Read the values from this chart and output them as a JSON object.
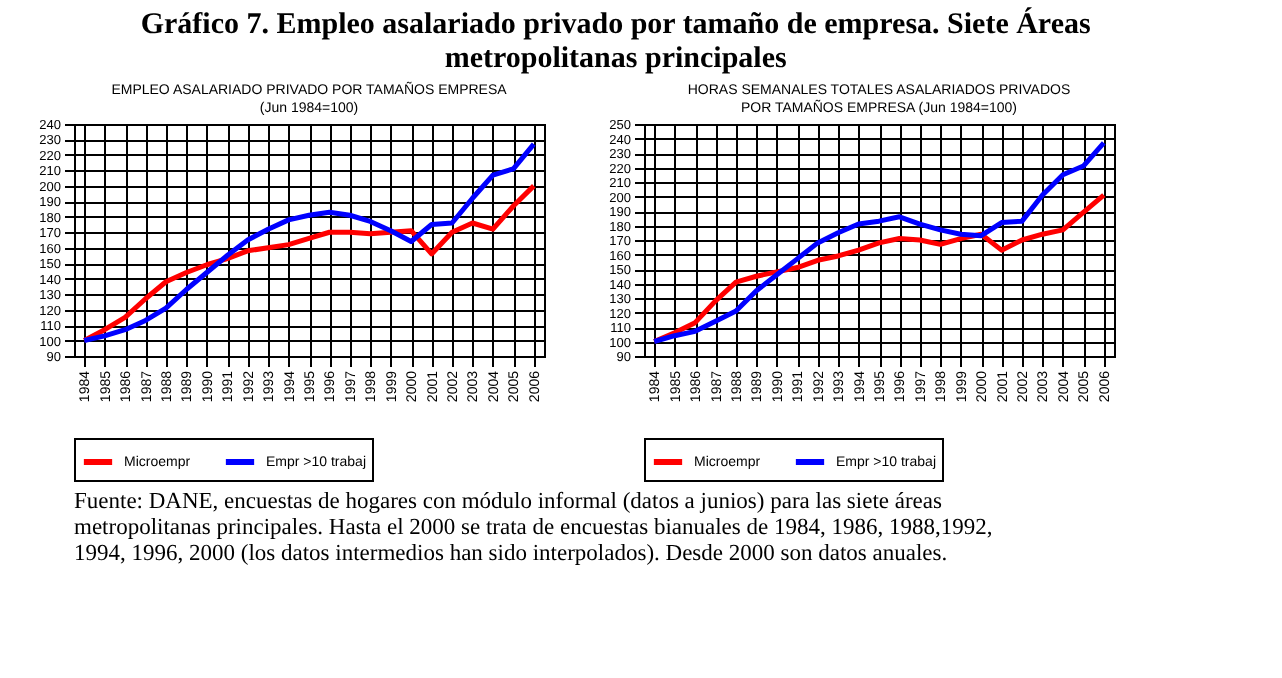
{
  "chart_data": [
    {
      "type": "line",
      "title": "EMPLEO ASALARIADO PRIVADO POR TAMAÑOS EMPRESA",
      "subtitle": "(Jun 1984=100)",
      "annotations": [
        "Gráfico 7. Empleo asalariado privado por tamaño de empresa. Siete Áreas metropolitanas principales",
        "Fuente: DANE, encuestas de hogares con módulo informal (datos a junios) para las siete áreas metropolitanas principales. Hasta el 2000 se trata de encuestas bianuales de 1984, 1986, 1988,1992, 1994, 1996, 2000 (los datos intermedios han sido interpolados). Desde 2000 son datos anuales."
      ],
      "categories": [
        "1984",
        "1985",
        "1986",
        "1987",
        "1988",
        "1989",
        "1990",
        "1991",
        "1992",
        "1993",
        "1994",
        "1995",
        "1996",
        "1997",
        "1998",
        "1999",
        "2000",
        "2001",
        "2002",
        "2003",
        "2004",
        "2005",
        "2006"
      ],
      "series": [
        {
          "name": "Microempr",
          "color": "#ff0000",
          "values": [
            100,
            107,
            115,
            127,
            138,
            144,
            149,
            153,
            158,
            160,
            162,
            166,
            170,
            170,
            169,
            170,
            171,
            156,
            170,
            176,
            172,
            187,
            200
          ]
        },
        {
          "name": "Empr >10 trabaj",
          "color": "#0000ff",
          "values": [
            100,
            103,
            107,
            113,
            121,
            133,
            144,
            155,
            165,
            172,
            178,
            181,
            183,
            181,
            177,
            171,
            164,
            175,
            176,
            192,
            207,
            211,
            227
          ]
        }
      ],
      "ylim": [
        90,
        240
      ],
      "yticks": [
        90,
        100,
        110,
        120,
        130,
        140,
        150,
        160,
        170,
        180,
        190,
        200,
        210,
        220,
        230,
        240
      ],
      "grid": true,
      "legend": "bottom",
      "marker": "none",
      "line_style": "solid"
    },
    {
      "type": "line",
      "title": "HORAS SEMANALES TOTALES ASALARIADOS PRIVADOS",
      "subtitle": "POR TAMAÑOS EMPRESA  (Jun 1984=100)",
      "categories": [
        "1984",
        "1985",
        "1986",
        "1987",
        "1988",
        "1989",
        "1990",
        "1991",
        "1992",
        "1993",
        "1994",
        "1995",
        "1996",
        "1997",
        "1998",
        "1999",
        "2000",
        "2001",
        "2002",
        "2003",
        "2004",
        "2005",
        "2006"
      ],
      "series": [
        {
          "name": "Microempr",
          "color": "#ff0000",
          "values": [
            100,
            106,
            113,
            128,
            141,
            145,
            148,
            151,
            156,
            159,
            163,
            168,
            171,
            170,
            167,
            171,
            174,
            163,
            170,
            174,
            177,
            189,
            201
          ]
        },
        {
          "name": "Empr >10 trabaj",
          "color": "#0000ff",
          "values": [
            100,
            104,
            107,
            114,
            121,
            135,
            146,
            157,
            168,
            175,
            181,
            183,
            186,
            181,
            177,
            174,
            173,
            182,
            183,
            201,
            215,
            221,
            237
          ]
        }
      ],
      "ylim": [
        90,
        250
      ],
      "yticks": [
        90,
        100,
        110,
        120,
        130,
        140,
        150,
        160,
        170,
        180,
        190,
        200,
        210,
        220,
        230,
        240,
        250
      ],
      "grid": true,
      "legend": "bottom",
      "marker": "none",
      "line_style": "solid"
    }
  ]
}
